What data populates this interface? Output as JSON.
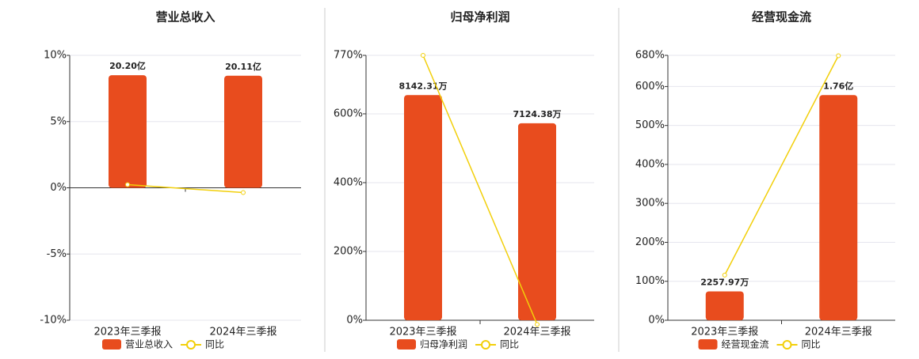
{
  "chart_data": [
    {
      "type": "bar",
      "title": "营业总收入",
      "categories": [
        "2023年三季报",
        "2024年三季报"
      ],
      "series": [
        {
          "name": "营业总收入",
          "type": "bar",
          "color": "#e84c1e",
          "values": [
            2020000000,
            2011000000
          ],
          "value_labels": [
            "20.20亿",
            "20.11亿"
          ]
        },
        {
          "name": "同比",
          "type": "line",
          "color": "#f2cf0a",
          "values": [
            0.24,
            -0.36
          ]
        }
      ],
      "ylim": [
        -10,
        10
      ],
      "yticks": [
        {
          "value": -10,
          "label": "-10%"
        },
        {
          "value": -5,
          "label": "-5%"
        },
        {
          "value": 0,
          "label": "0%"
        },
        {
          "value": 5,
          "label": "5%"
        },
        {
          "value": 10,
          "label": "10%"
        }
      ],
      "grid": true
    },
    {
      "type": "bar",
      "title": "归母净利润",
      "categories": [
        "2023年三季报",
        "2024年三季报"
      ],
      "series": [
        {
          "name": "归母净利润",
          "type": "bar",
          "color": "#e84c1e",
          "values": [
            81423100,
            71243800
          ],
          "value_labels": [
            "8142.31万",
            "7124.38万"
          ]
        },
        {
          "name": "同比",
          "type": "line",
          "color": "#f2cf0a",
          "values": [
            770,
            -12
          ]
        }
      ],
      "ylim": [
        0,
        770
      ],
      "yticks": [
        {
          "value": 0,
          "label": "0%"
        },
        {
          "value": 200,
          "label": "200%"
        },
        {
          "value": 400,
          "label": "400%"
        },
        {
          "value": 600,
          "label": "600%"
        },
        {
          "value": 770,
          "label": "770%"
        }
      ],
      "grid": true
    },
    {
      "type": "bar",
      "title": "经营现金流",
      "categories": [
        "2023年三季报",
        "2024年三季报"
      ],
      "series": [
        {
          "name": "经营现金流",
          "type": "bar",
          "color": "#e84c1e",
          "values": [
            22579700,
            176000000
          ],
          "value_labels": [
            "2257.97万",
            "1.76亿"
          ]
        },
        {
          "name": "同比",
          "type": "line",
          "color": "#f2cf0a",
          "values": [
            116,
            679
          ]
        }
      ],
      "ylim": [
        0,
        680
      ],
      "yticks": [
        {
          "value": 0,
          "label": "0%"
        },
        {
          "value": 100,
          "label": "100%"
        },
        {
          "value": 200,
          "label": "200%"
        },
        {
          "value": 300,
          "label": "300%"
        },
        {
          "value": 400,
          "label": "400%"
        },
        {
          "value": 500,
          "label": "500%"
        },
        {
          "value": 600,
          "label": "600%"
        },
        {
          "value": 680,
          "label": "680%"
        }
      ],
      "grid": true
    }
  ]
}
